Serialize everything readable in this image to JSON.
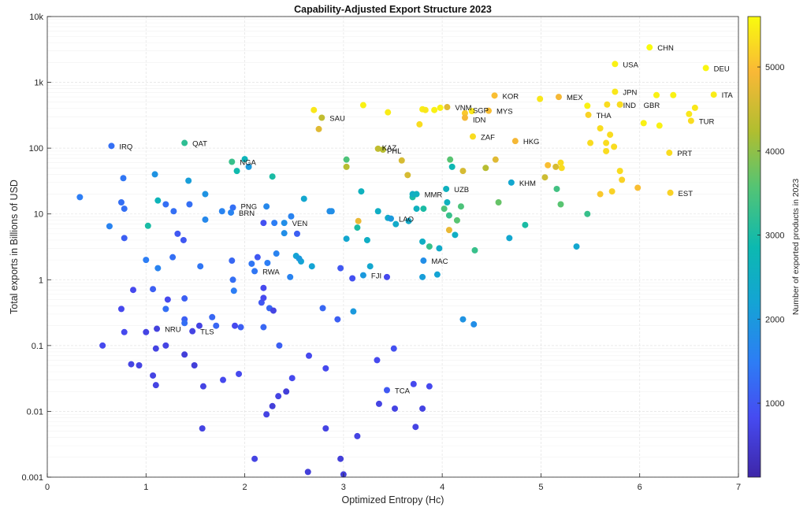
{
  "chart_data": {
    "type": "scatter",
    "title": "Capability-Adjusted Export Structure 2023",
    "xlabel": "Optimized Entropy (Hc)",
    "ylabel": "Total exports in Billions of USD",
    "colorbar_label": "Number of exported products in 2023",
    "xlim": [
      0,
      7
    ],
    "ylim": [
      0.001,
      10000
    ],
    "y_scale": "log",
    "grid": true,
    "colormap": "parula",
    "clim": [
      120,
      5600
    ],
    "x_ticks": [
      "0",
      "1",
      "2",
      "3",
      "4",
      "5",
      "6",
      "7"
    ],
    "y_ticks": [
      "10k",
      "1k",
      "100",
      "10",
      "1",
      "0.1",
      "0.01",
      "0.001"
    ],
    "colorbar_ticks": [
      "1000",
      "2000",
      "3000",
      "4000",
      "5000"
    ],
    "labeled_points": [
      {
        "label": "CHN",
        "x": 6.1,
        "y": 3400,
        "c": 5600
      },
      {
        "label": "USA",
        "x": 5.75,
        "y": 1900,
        "c": 5500
      },
      {
        "label": "DEU",
        "x": 6.67,
        "y": 1650,
        "c": 5550
      },
      {
        "label": "JPN",
        "x": 5.75,
        "y": 720,
        "c": 5400
      },
      {
        "label": "ITA",
        "x": 6.75,
        "y": 650,
        "c": 5450
      },
      {
        "label": "KOR",
        "x": 4.53,
        "y": 630,
        "c": 5000
      },
      {
        "label": "MEX",
        "x": 5.18,
        "y": 600,
        "c": 4900
      },
      {
        "label": "IND",
        "x": 5.8,
        "y": 460,
        "c": 5100
      },
      {
        "label": "GBR",
        "x": 5.8,
        "y": 460,
        "c": 5300
      },
      {
        "label": "VNM",
        "x": 4.05,
        "y": 420,
        "c": 4700
      },
      {
        "label": "MYS",
        "x": 4.47,
        "y": 370,
        "c": 5000
      },
      {
        "label": "SGP",
        "x": 4.23,
        "y": 340,
        "c": 5100
      },
      {
        "label": "THA",
        "x": 5.48,
        "y": 320,
        "c": 5200
      },
      {
        "label": "IDN",
        "x": 4.23,
        "y": 290,
        "c": 4900
      },
      {
        "label": "SAU",
        "x": 2.78,
        "y": 290,
        "c": 4400
      },
      {
        "label": "TUR",
        "x": 6.52,
        "y": 260,
        "c": 5300
      },
      {
        "label": "ZAF",
        "x": 4.31,
        "y": 150,
        "c": 5300
      },
      {
        "label": "HKG",
        "x": 4.74,
        "y": 128,
        "c": 4900
      },
      {
        "label": "QAT",
        "x": 1.39,
        "y": 120,
        "c": 3200
      },
      {
        "label": "IRQ",
        "x": 0.65,
        "y": 108,
        "c": 1300
      },
      {
        "label": "KAZ",
        "x": 3.35,
        "y": 98,
        "c": 4400
      },
      {
        "label": "PHL",
        "x": 3.4,
        "y": 95,
        "c": 4300
      },
      {
        "label": "PRT",
        "x": 6.3,
        "y": 85,
        "c": 5300
      },
      {
        "label": "NGA",
        "x": 1.87,
        "y": 62,
        "c": 3300
      },
      {
        "label": "KHM",
        "x": 4.7,
        "y": 30,
        "c": 2300
      },
      {
        "label": "UZB",
        "x": 4.04,
        "y": 24,
        "c": 2600
      },
      {
        "label": "EST",
        "x": 6.31,
        "y": 21,
        "c": 5200
      },
      {
        "label": "MMR",
        "x": 3.74,
        "y": 20,
        "c": 2600
      },
      {
        "label": "PNG",
        "x": 1.88,
        "y": 12.5,
        "c": 1300
      },
      {
        "label": "BRN",
        "x": 1.86,
        "y": 10.5,
        "c": 1600
      },
      {
        "label": "LAO",
        "x": 3.48,
        "y": 8.5,
        "c": 2000
      },
      {
        "label": "VEN",
        "x": 2.4,
        "y": 7.3,
        "c": 1800
      },
      {
        "label": "MAC",
        "x": 3.81,
        "y": 1.95,
        "c": 1800
      },
      {
        "label": "RWA",
        "x": 2.1,
        "y": 1.35,
        "c": 1400
      },
      {
        "label": "FJI",
        "x": 3.2,
        "y": 1.17,
        "c": 2000
      },
      {
        "label": "NRU",
        "x": 1.11,
        "y": 0.18,
        "c": 650
      },
      {
        "label": "TLS",
        "x": 1.47,
        "y": 0.165,
        "c": 700
      },
      {
        "label": "TCA",
        "x": 3.44,
        "y": 0.021,
        "c": 1000
      }
    ],
    "unlabeled_points": [
      [
        3.2,
        450,
        5500
      ],
      [
        2.7,
        380,
        5400
      ],
      [
        3.45,
        350,
        5450
      ],
      [
        3.8,
        390,
        5450
      ],
      [
        3.83,
        380,
        5400
      ],
      [
        3.92,
        380,
        5500
      ],
      [
        3.98,
        410,
        5500
      ],
      [
        4.3,
        365,
        5400
      ],
      [
        3.77,
        230,
        5300
      ],
      [
        2.75,
        195,
        4700
      ],
      [
        4.99,
        560,
        5400
      ],
      [
        5.47,
        440,
        5500
      ],
      [
        5.67,
        460,
        5300
      ],
      [
        6.04,
        240,
        5500
      ],
      [
        6.2,
        220,
        5500
      ],
      [
        5.5,
        120,
        5300
      ],
      [
        5.6,
        200,
        5300
      ],
      [
        5.7,
        160,
        5300
      ],
      [
        5.66,
        120,
        5300
      ],
      [
        5.74,
        105,
        5300
      ],
      [
        5.66,
        90,
        5300
      ],
      [
        5.07,
        55,
        5000
      ],
      [
        5.2,
        60,
        5300
      ],
      [
        5.21,
        50,
        5300
      ],
      [
        5.8,
        45,
        5300
      ],
      [
        5.6,
        20,
        5100
      ],
      [
        5.72,
        22,
        5200
      ],
      [
        5.98,
        25,
        5000
      ],
      [
        5.82,
        33,
        5200
      ],
      [
        6.17,
        640,
        5500
      ],
      [
        6.34,
        640,
        5500
      ],
      [
        6.5,
        330,
        5400
      ],
      [
        6.56,
        410,
        5400
      ],
      [
        5.15,
        52,
        4600
      ],
      [
        5.04,
        36,
        4500
      ],
      [
        4.21,
        45,
        4600
      ],
      [
        4.54,
        67,
        4700
      ],
      [
        3.59,
        65,
        4600
      ],
      [
        3.65,
        39,
        4600
      ],
      [
        3.03,
        52,
        4300
      ],
      [
        3.15,
        7.8,
        4800
      ],
      [
        4.07,
        5.7,
        4800
      ],
      [
        4.44,
        50,
        4300
      ],
      [
        3.03,
        67,
        3500
      ],
      [
        4.08,
        67,
        3600
      ],
      [
        4.57,
        15,
        3700
      ],
      [
        5.2,
        14,
        3600
      ],
      [
        5.16,
        24,
        3400
      ],
      [
        5.47,
        10,
        3300
      ],
      [
        4.15,
        8,
        3600
      ],
      [
        4.02,
        12,
        3500
      ],
      [
        4.07,
        9.5,
        3300
      ],
      [
        4.19,
        13,
        3500
      ],
      [
        4.33,
        2.8,
        3300
      ],
      [
        3.87,
        3.2,
        3300
      ],
      [
        4.84,
        6.8,
        3000
      ],
      [
        4.1,
        52,
        2800
      ],
      [
        3.7,
        18,
        3000
      ],
      [
        3.81,
        12,
        3000
      ],
      [
        2.28,
        37,
        3000
      ],
      [
        2.0,
        68,
        2700
      ],
      [
        1.92,
        45,
        2900
      ],
      [
        1.02,
        6.6,
        3000
      ],
      [
        1.12,
        16,
        2700
      ],
      [
        3.18,
        22,
        2600
      ],
      [
        3.14,
        6.2,
        3000
      ],
      [
        3.8,
        3.8,
        2500
      ],
      [
        3.97,
        3,
        2400
      ],
      [
        3.35,
        11,
        2500
      ],
      [
        3.45,
        8.7,
        2400
      ],
      [
        3.53,
        7,
        2400
      ],
      [
        3.66,
        7.8,
        2400
      ],
      [
        3.7,
        20,
        2500
      ],
      [
        3.74,
        12,
        2600
      ],
      [
        4.05,
        15,
        2600
      ],
      [
        4.13,
        4.8,
        2500
      ],
      [
        4.68,
        4.3,
        2300
      ],
      [
        5.36,
        3.2,
        2300
      ],
      [
        4.21,
        0.25,
        1900
      ],
      [
        4.32,
        0.21,
        1800
      ],
      [
        3.95,
        1.2,
        2200
      ],
      [
        3.8,
        1.1,
        2100
      ],
      [
        3.1,
        0.33,
        2000
      ],
      [
        3.27,
        1.6,
        2300
      ],
      [
        3.24,
        4,
        2500
      ],
      [
        3.03,
        4.2,
        2300
      ],
      [
        2.6,
        17,
        2300
      ],
      [
        2.52,
        2.3,
        2200
      ],
      [
        2.57,
        1.9,
        2200
      ],
      [
        2.68,
        1.6,
        2200
      ],
      [
        2.86,
        11,
        1800
      ],
      [
        2.88,
        11,
        1800
      ],
      [
        2.55,
        2.1,
        2000
      ],
      [
        2.22,
        13,
        1700
      ],
      [
        2.3,
        7.3,
        1500
      ],
      [
        2.4,
        5.1,
        1800
      ],
      [
        2.47,
        9.2,
        1600
      ],
      [
        2.46,
        1.1,
        1600
      ],
      [
        2.04,
        52,
        2000
      ],
      [
        1.43,
        32,
        2100
      ],
      [
        1.6,
        20,
        1900
      ],
      [
        1.09,
        40,
        1900
      ],
      [
        0.77,
        35,
        1400
      ],
      [
        0.75,
        15,
        1300
      ],
      [
        0.78,
        12,
        1300
      ],
      [
        0.33,
        18,
        1500
      ],
      [
        0.63,
        6.5,
        1600
      ],
      [
        0.78,
        4.3,
        1100
      ],
      [
        1.2,
        14,
        1300
      ],
      [
        1.28,
        11,
        1300
      ],
      [
        1.44,
        14,
        1300
      ],
      [
        1.77,
        11,
        1600
      ],
      [
        1.6,
        8.2,
        1700
      ],
      [
        1.32,
        5,
        1000
      ],
      [
        1.38,
        4,
        1000
      ],
      [
        1.0,
        2,
        1500
      ],
      [
        1.12,
        1.5,
        1600
      ],
      [
        1.27,
        2.2,
        1300
      ],
      [
        1.55,
        1.6,
        1400
      ],
      [
        1.88,
        1,
        1300
      ],
      [
        2.07,
        1.75,
        1400
      ],
      [
        2.13,
        2.2,
        1000
      ],
      [
        2.23,
        1.8,
        1500
      ],
      [
        2.32,
        2.5,
        1600
      ],
      [
        2.53,
        5.0,
        1100
      ],
      [
        1.87,
        1.95,
        1200
      ],
      [
        1.89,
        0.68,
        1500
      ],
      [
        2.17,
        0.45,
        1000
      ],
      [
        2.19,
        0.53,
        800
      ],
      [
        2.19,
        0.75,
        800
      ],
      [
        1.67,
        0.27,
        1200
      ],
      [
        1.71,
        0.2,
        1200
      ],
      [
        1.9,
        0.2,
        800
      ],
      [
        1.96,
        0.19,
        1100
      ],
      [
        2.19,
        0.19,
        1200
      ],
      [
        2.25,
        0.37,
        1200
      ],
      [
        1.2,
        0.36,
        1300
      ],
      [
        1.39,
        0.52,
        1100
      ],
      [
        1.39,
        0.25,
        1100
      ],
      [
        1.39,
        0.22,
        1300
      ],
      [
        1.22,
        0.5,
        800
      ],
      [
        1.07,
        0.72,
        1100
      ],
      [
        1.07,
        0.035,
        700
      ],
      [
        0.87,
        0.7,
        800
      ],
      [
        0.75,
        0.36,
        800
      ],
      [
        0.56,
        0.1,
        800
      ],
      [
        0.78,
        0.16,
        800
      ],
      [
        0.85,
        0.052,
        700
      ],
      [
        0.93,
        0.05,
        700
      ],
      [
        1.0,
        0.16,
        700
      ],
      [
        1.1,
        0.09,
        700
      ],
      [
        1.2,
        0.1,
        700
      ],
      [
        1.1,
        0.025,
        700
      ],
      [
        1.39,
        0.073,
        600
      ],
      [
        1.49,
        0.05,
        600
      ],
      [
        1.58,
        0.024,
        700
      ],
      [
        1.57,
        0.0055,
        700
      ],
      [
        1.54,
        0.2,
        700
      ],
      [
        1.78,
        0.03,
        800
      ],
      [
        1.94,
        0.037,
        800
      ],
      [
        2.29,
        0.34,
        700
      ],
      [
        2.35,
        0.1,
        1100
      ],
      [
        2.34,
        0.017,
        700
      ],
      [
        2.42,
        0.02,
        600
      ],
      [
        2.48,
        0.032,
        800
      ],
      [
        2.28,
        0.012,
        600
      ],
      [
        2.22,
        0.009,
        700
      ],
      [
        2.1,
        0.0019,
        700
      ],
      [
        2.64,
        0.0012,
        600
      ],
      [
        2.97,
        0.0019,
        600
      ],
      [
        3.0,
        0.0011,
        600
      ],
      [
        3.14,
        0.0042,
        700
      ],
      [
        2.82,
        0.0055,
        700
      ],
      [
        2.82,
        0.045,
        800
      ],
      [
        2.94,
        0.25,
        1100
      ],
      [
        2.79,
        0.37,
        1200
      ],
      [
        2.65,
        0.07,
        800
      ],
      [
        3.34,
        0.06,
        800
      ],
      [
        3.51,
        0.09,
        900
      ],
      [
        3.36,
        0.013,
        700
      ],
      [
        3.52,
        0.011,
        700
      ],
      [
        3.71,
        0.026,
        800
      ],
      [
        3.73,
        0.0058,
        700
      ],
      [
        3.8,
        0.011,
        700
      ],
      [
        3.87,
        0.024,
        800
      ],
      [
        2.97,
        1.5,
        1000
      ],
      [
        3.44,
        1.1,
        800
      ],
      [
        3.09,
        1.05,
        900
      ],
      [
        2.19,
        7.3,
        900
      ]
    ]
  }
}
